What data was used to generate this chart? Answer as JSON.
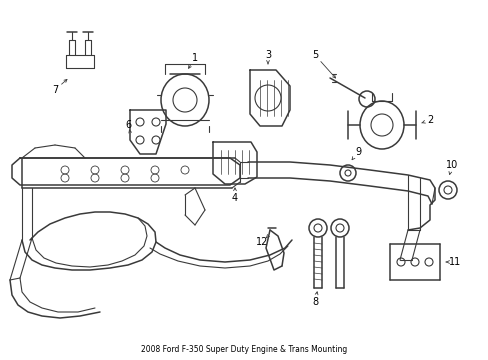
{
  "background_color": "#ffffff",
  "line_color": "#3a3a3a",
  "text_color": "#000000",
  "fig_width": 4.89,
  "fig_height": 3.6,
  "dpi": 100
}
